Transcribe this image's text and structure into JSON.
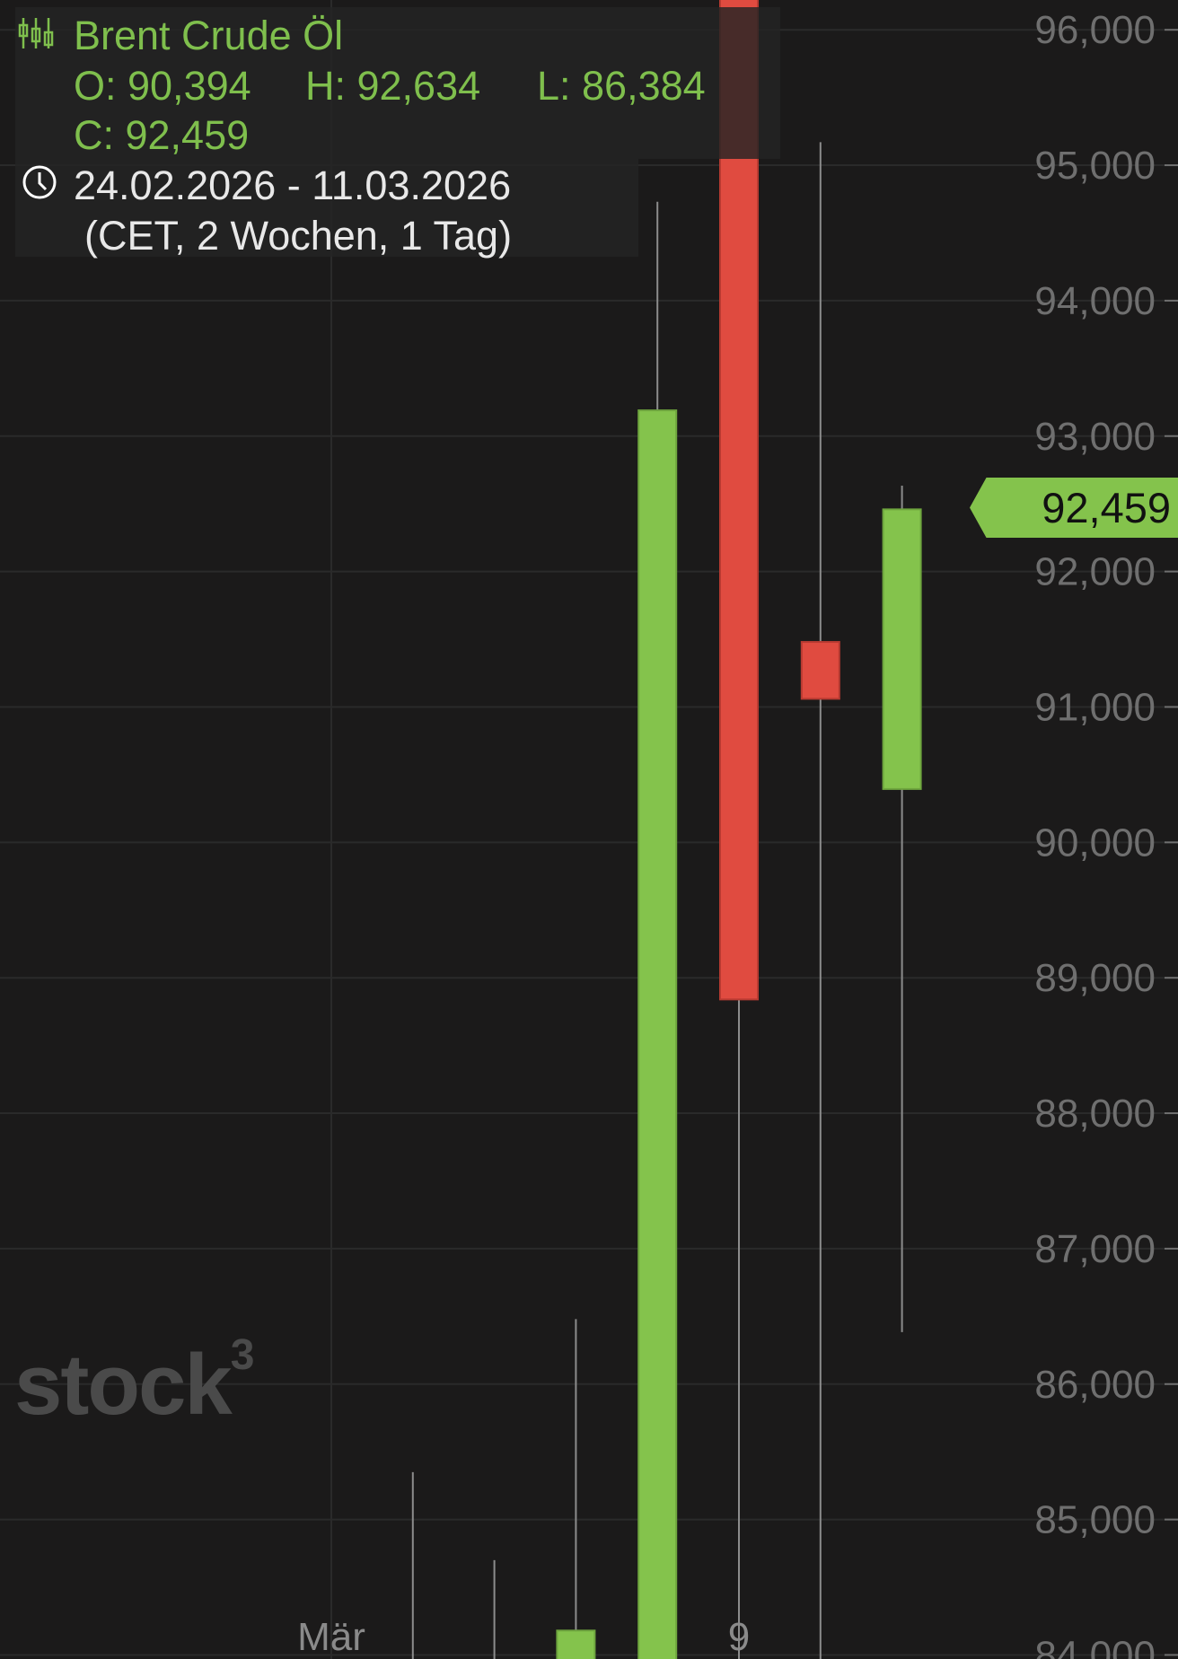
{
  "header": {
    "instrument": "Brent Crude Öl",
    "ohlc": {
      "open": "O: 90,394",
      "high": "H: 92,634",
      "low": "L: 86,384",
      "close": "C: 92,459"
    },
    "range": "24.02.2026 - 11.03.2026",
    "range_detail": "(CET, 2 Wochen, 1 Tag)",
    "icons": {
      "chart_type": "candlestick-icon",
      "time": "clock-icon"
    }
  },
  "watermark": {
    "text": "stock",
    "sup": "3"
  },
  "price_tag": {
    "value": "92,459",
    "color": "#84c34c"
  },
  "colors": {
    "up": "#84c34c",
    "down": "#e04b40",
    "background": "#1b1a1a",
    "grid": "#2a2a2a",
    "axis_text": "#6f6f6f",
    "wick": "#8c8c8c"
  },
  "chart_data": {
    "type": "candlestick",
    "ylim": [
      83.97,
      96.22
    ],
    "y_ticks": [
      "84,000",
      "85,000",
      "86,000",
      "87,000",
      "88,000",
      "89,000",
      "90,000",
      "91,000",
      "92,000",
      "93,000",
      "94,000",
      "95,000",
      "96,000"
    ],
    "y_tick_values": [
      84,
      85,
      86,
      87,
      88,
      89,
      90,
      91,
      92,
      93,
      94,
      95,
      96
    ],
    "x_labels": [
      {
        "date": "02.03",
        "text": "Mär"
      },
      {
        "date": "09.03",
        "text": "9"
      }
    ],
    "grid": true,
    "candles": [
      {
        "date": "02.03",
        "o": null,
        "h": null,
        "l": null,
        "c": null,
        "dir": null
      },
      {
        "date": "03.03",
        "o": null,
        "h": 85.35,
        "l": null,
        "c": null,
        "dir": null
      },
      {
        "date": "04.03",
        "o": null,
        "h": 84.7,
        "l": null,
        "c": null,
        "dir": null
      },
      {
        "date": "05.03",
        "o": null,
        "h": 86.48,
        "l": null,
        "c": 84.18,
        "dir": "up"
      },
      {
        "date": "06.03",
        "o": null,
        "h": 94.73,
        "l": null,
        "c": 93.19,
        "dir": "up"
      },
      {
        "date": "09.03",
        "o": null,
        "h": null,
        "l": null,
        "c": 88.84,
        "dir": "down"
      },
      {
        "date": "10.03",
        "o": 91.48,
        "h": 95.17,
        "l": null,
        "c": 91.06,
        "dir": "down"
      },
      {
        "date": "11.03",
        "o": 90.394,
        "h": 92.634,
        "l": 86.384,
        "c": 92.459,
        "dir": "up"
      }
    ]
  }
}
